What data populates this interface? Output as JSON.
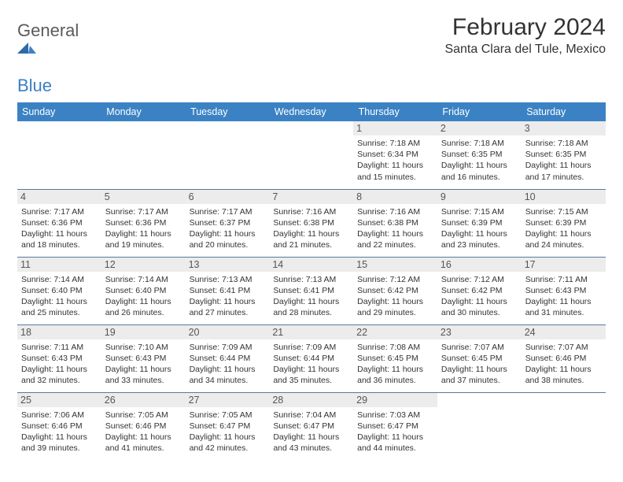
{
  "logo": {
    "text1": "General",
    "text2": "Blue"
  },
  "title": "February 2024",
  "location": "Santa Clara del Tule, Mexico",
  "colors": {
    "header_bg": "#3b82c4",
    "header_text": "#ffffff",
    "daynum_bg": "#ececec",
    "border": "#5a7a9a",
    "logo_gray": "#5a5a5a",
    "logo_blue": "#3b7fc4"
  },
  "weekdays": [
    "Sunday",
    "Monday",
    "Tuesday",
    "Wednesday",
    "Thursday",
    "Friday",
    "Saturday"
  ],
  "layout": {
    "first_weekday_index": 4,
    "days_in_month": 29
  },
  "days": {
    "1": {
      "sunrise": "7:18 AM",
      "sunset": "6:34 PM",
      "daylight": "11 hours and 15 minutes."
    },
    "2": {
      "sunrise": "7:18 AM",
      "sunset": "6:35 PM",
      "daylight": "11 hours and 16 minutes."
    },
    "3": {
      "sunrise": "7:18 AM",
      "sunset": "6:35 PM",
      "daylight": "11 hours and 17 minutes."
    },
    "4": {
      "sunrise": "7:17 AM",
      "sunset": "6:36 PM",
      "daylight": "11 hours and 18 minutes."
    },
    "5": {
      "sunrise": "7:17 AM",
      "sunset": "6:36 PM",
      "daylight": "11 hours and 19 minutes."
    },
    "6": {
      "sunrise": "7:17 AM",
      "sunset": "6:37 PM",
      "daylight": "11 hours and 20 minutes."
    },
    "7": {
      "sunrise": "7:16 AM",
      "sunset": "6:38 PM",
      "daylight": "11 hours and 21 minutes."
    },
    "8": {
      "sunrise": "7:16 AM",
      "sunset": "6:38 PM",
      "daylight": "11 hours and 22 minutes."
    },
    "9": {
      "sunrise": "7:15 AM",
      "sunset": "6:39 PM",
      "daylight": "11 hours and 23 minutes."
    },
    "10": {
      "sunrise": "7:15 AM",
      "sunset": "6:39 PM",
      "daylight": "11 hours and 24 minutes."
    },
    "11": {
      "sunrise": "7:14 AM",
      "sunset": "6:40 PM",
      "daylight": "11 hours and 25 minutes."
    },
    "12": {
      "sunrise": "7:14 AM",
      "sunset": "6:40 PM",
      "daylight": "11 hours and 26 minutes."
    },
    "13": {
      "sunrise": "7:13 AM",
      "sunset": "6:41 PM",
      "daylight": "11 hours and 27 minutes."
    },
    "14": {
      "sunrise": "7:13 AM",
      "sunset": "6:41 PM",
      "daylight": "11 hours and 28 minutes."
    },
    "15": {
      "sunrise": "7:12 AM",
      "sunset": "6:42 PM",
      "daylight": "11 hours and 29 minutes."
    },
    "16": {
      "sunrise": "7:12 AM",
      "sunset": "6:42 PM",
      "daylight": "11 hours and 30 minutes."
    },
    "17": {
      "sunrise": "7:11 AM",
      "sunset": "6:43 PM",
      "daylight": "11 hours and 31 minutes."
    },
    "18": {
      "sunrise": "7:11 AM",
      "sunset": "6:43 PM",
      "daylight": "11 hours and 32 minutes."
    },
    "19": {
      "sunrise": "7:10 AM",
      "sunset": "6:43 PM",
      "daylight": "11 hours and 33 minutes."
    },
    "20": {
      "sunrise": "7:09 AM",
      "sunset": "6:44 PM",
      "daylight": "11 hours and 34 minutes."
    },
    "21": {
      "sunrise": "7:09 AM",
      "sunset": "6:44 PM",
      "daylight": "11 hours and 35 minutes."
    },
    "22": {
      "sunrise": "7:08 AM",
      "sunset": "6:45 PM",
      "daylight": "11 hours and 36 minutes."
    },
    "23": {
      "sunrise": "7:07 AM",
      "sunset": "6:45 PM",
      "daylight": "11 hours and 37 minutes."
    },
    "24": {
      "sunrise": "7:07 AM",
      "sunset": "6:46 PM",
      "daylight": "11 hours and 38 minutes."
    },
    "25": {
      "sunrise": "7:06 AM",
      "sunset": "6:46 PM",
      "daylight": "11 hours and 39 minutes."
    },
    "26": {
      "sunrise": "7:05 AM",
      "sunset": "6:46 PM",
      "daylight": "11 hours and 41 minutes."
    },
    "27": {
      "sunrise": "7:05 AM",
      "sunset": "6:47 PM",
      "daylight": "11 hours and 42 minutes."
    },
    "28": {
      "sunrise": "7:04 AM",
      "sunset": "6:47 PM",
      "daylight": "11 hours and 43 minutes."
    },
    "29": {
      "sunrise": "7:03 AM",
      "sunset": "6:47 PM",
      "daylight": "11 hours and 44 minutes."
    }
  },
  "labels": {
    "sunrise": "Sunrise:",
    "sunset": "Sunset:",
    "daylight": "Daylight:"
  }
}
